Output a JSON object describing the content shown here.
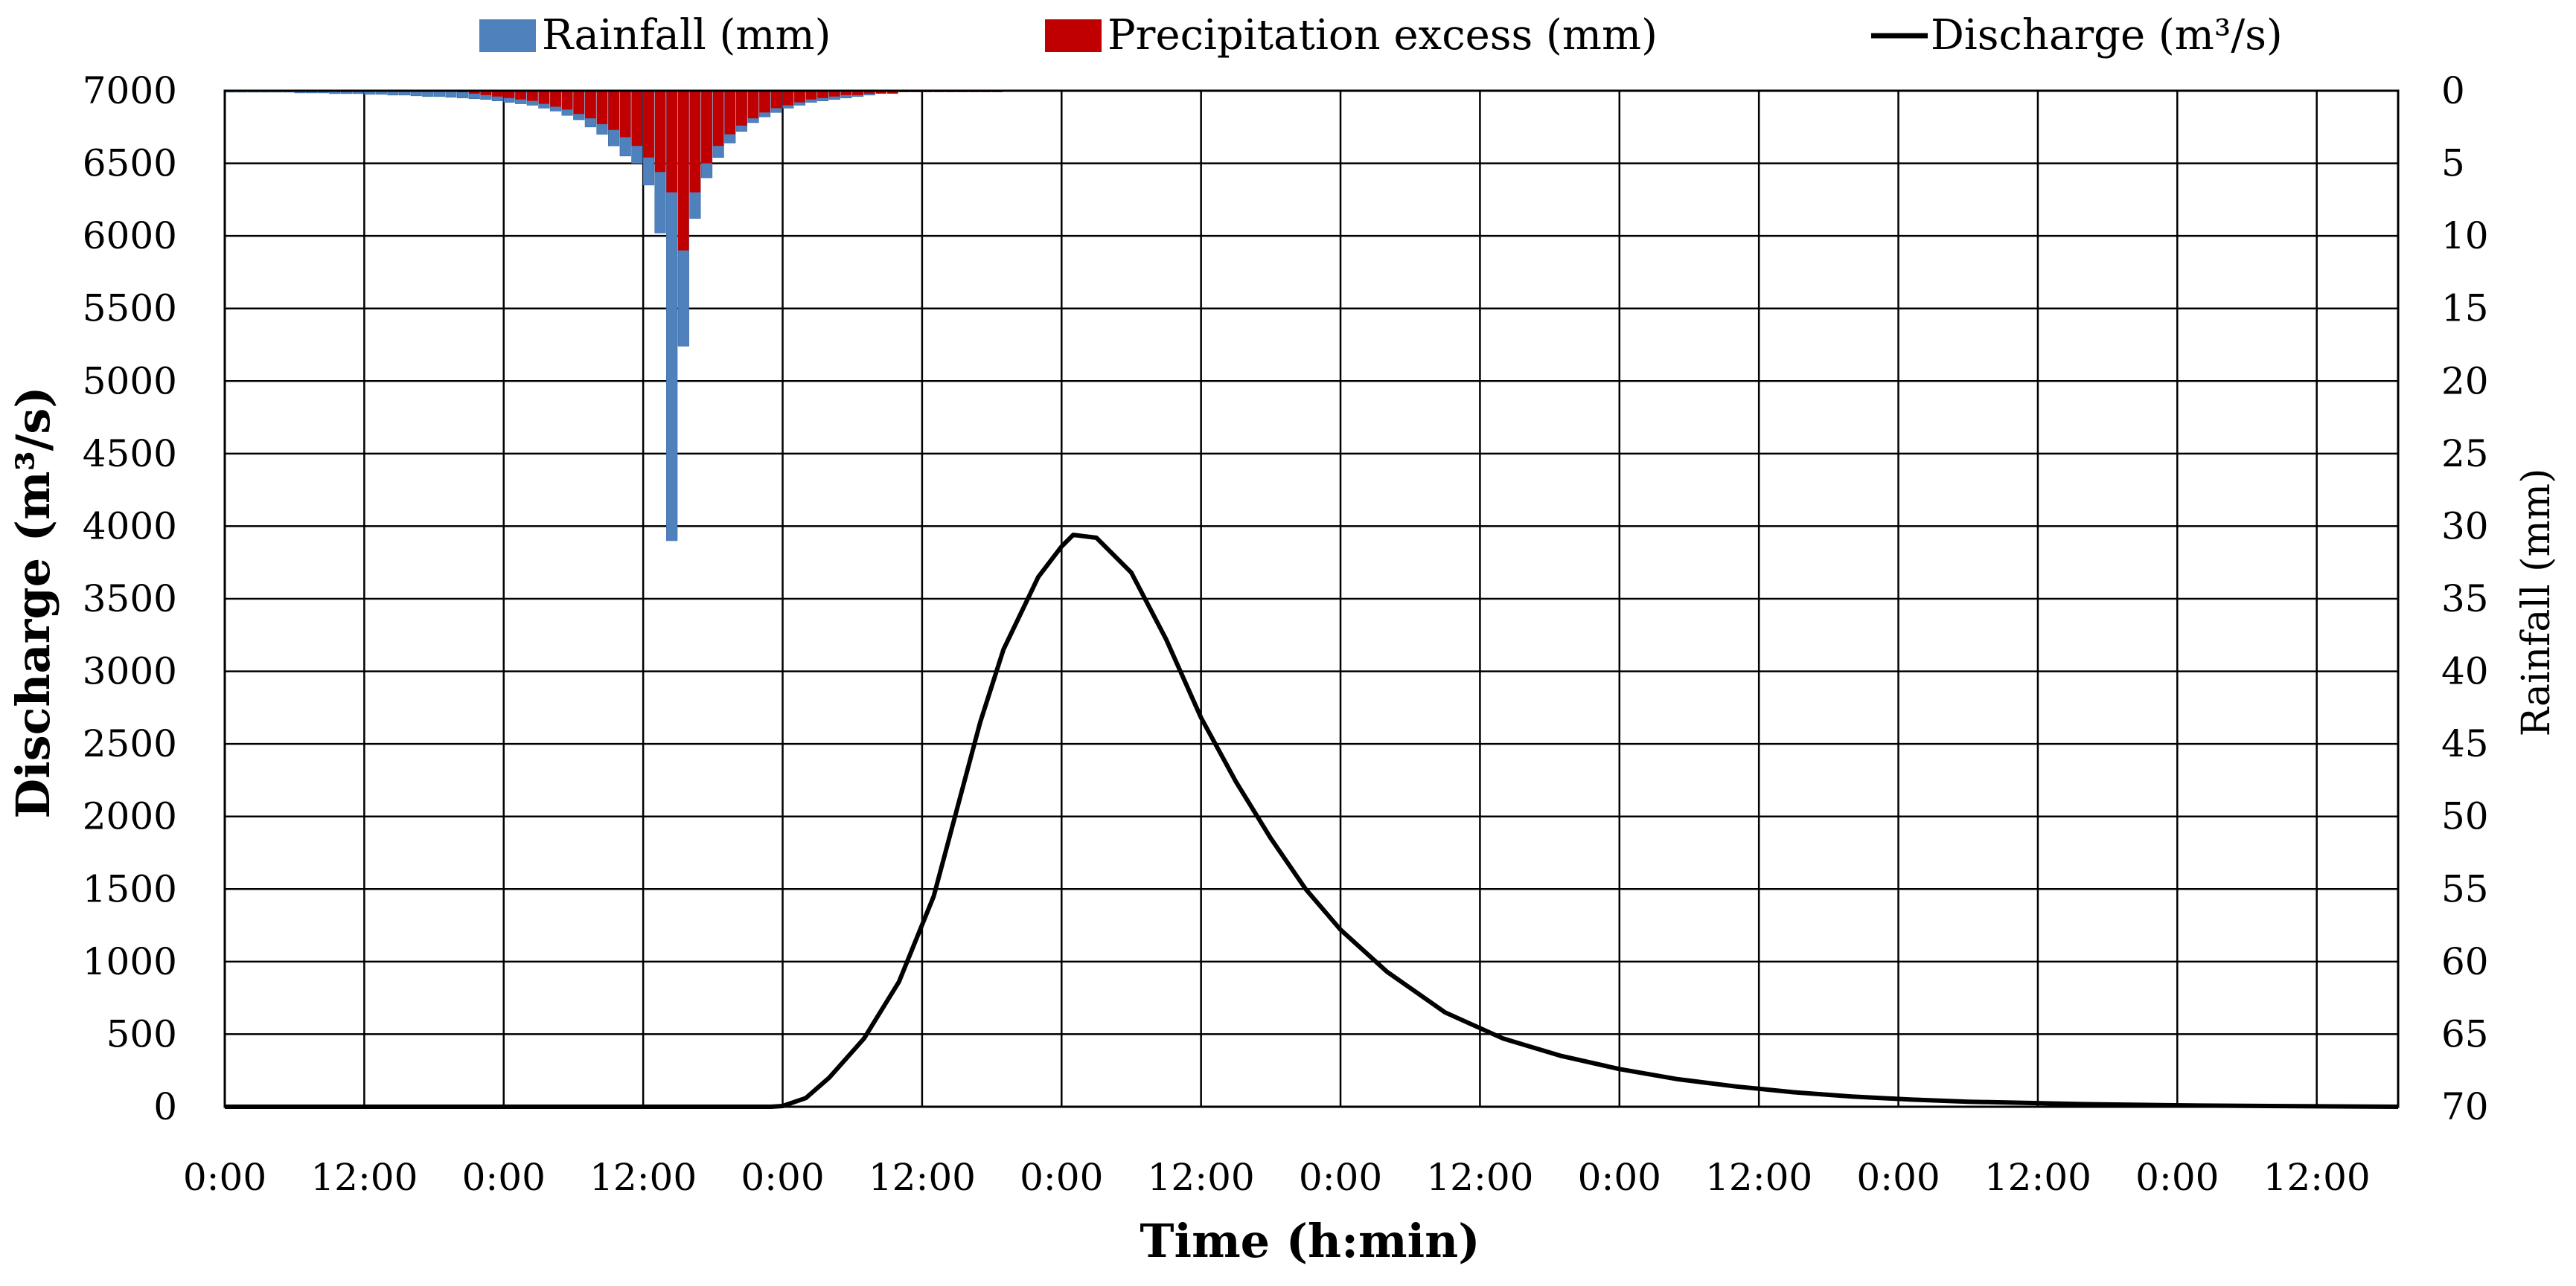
{
  "chart_data": {
    "type": "combo-bar-line",
    "x_tick_labels": [
      "0:00",
      "12:00",
      "0:00",
      "12:00",
      "0:00",
      "12:00",
      "0:00",
      "12:00",
      "0:00",
      "12:00",
      "0:00",
      "12:00",
      "0:00",
      "12:00",
      "0:00",
      "12:00"
    ],
    "xlabel": "Time (h:min)",
    "xlim_hours": [
      0,
      187
    ],
    "ylabel_left": "Discharge (m³/s)",
    "ylim_left": [
      0,
      7000
    ],
    "yticks_left": [
      0,
      500,
      1000,
      1500,
      2000,
      2500,
      3000,
      3500,
      4000,
      4500,
      5000,
      5500,
      6000,
      6500,
      7000
    ],
    "ylabel_right": "Rainfall (mm)",
    "ylim_right_inverted": [
      0,
      70
    ],
    "yticks_right": [
      0,
      5,
      10,
      15,
      20,
      25,
      30,
      35,
      40,
      45,
      50,
      55,
      60,
      65,
      70
    ],
    "grid": true,
    "legend_position": "top",
    "series": [
      {
        "name": "Rainfall (mm)",
        "kind": "bar",
        "axis": "right",
        "color": "#4f81bd",
        "time_hours": [
          0,
          1,
          2,
          3,
          4,
          5,
          6,
          7,
          8,
          9,
          10,
          11,
          12,
          13,
          14,
          15,
          16,
          17,
          18,
          19,
          20,
          21,
          22,
          23,
          24,
          25,
          26,
          27,
          28,
          29,
          30,
          31,
          32,
          33,
          34,
          35,
          36,
          37,
          38,
          39,
          40,
          41,
          42,
          43,
          44,
          45,
          46,
          47,
          48,
          49,
          50,
          51,
          52,
          53,
          54,
          55
        ],
        "values": [
          0.1,
          0.1,
          0.1,
          0.1,
          0.1,
          0.1,
          0.15,
          0.15,
          0.15,
          0.2,
          0.2,
          0.2,
          0.25,
          0.25,
          0.3,
          0.3,
          0.35,
          0.4,
          0.4,
          0.45,
          0.5,
          0.55,
          0.6,
          0.7,
          0.8,
          0.9,
          1.0,
          1.2,
          1.4,
          1.7,
          2.0,
          2.5,
          3.0,
          3.8,
          4.5,
          5.0,
          6.5,
          9.8,
          31.0,
          17.6,
          8.8,
          6.0,
          4.6,
          3.6,
          2.8,
          2.2,
          1.8,
          1.5,
          1.2,
          1.0,
          0.8,
          0.7,
          0.6,
          0.5,
          0.4,
          0.3
        ]
      },
      {
        "name": "Precipitation excess (mm)",
        "kind": "bar",
        "axis": "right",
        "color": "#c00000",
        "time_hours": [
          20,
          21,
          22,
          23,
          24,
          25,
          26,
          27,
          28,
          29,
          30,
          31,
          32,
          33,
          34,
          35,
          36,
          37,
          38,
          39,
          40,
          41,
          42,
          43,
          44,
          45,
          46,
          47,
          48,
          49,
          50,
          51,
          52,
          53,
          54,
          55,
          56,
          57,
          58,
          59,
          60,
          61,
          62,
          63,
          64,
          65,
          66
        ],
        "values": [
          0.1,
          0.2,
          0.3,
          0.4,
          0.5,
          0.6,
          0.7,
          0.9,
          1.1,
          1.3,
          1.6,
          1.9,
          2.3,
          2.7,
          3.2,
          3.8,
          4.6,
          5.6,
          7.0,
          11.0,
          7.0,
          5.0,
          3.8,
          3.0,
          2.4,
          1.9,
          1.5,
          1.2,
          1.0,
          0.8,
          0.6,
          0.5,
          0.4,
          0.3,
          0.3,
          0.2,
          0.2,
          0.2,
          0.1,
          0.1,
          0.1,
          0.1,
          0.1,
          0.1,
          0.1,
          0.1,
          0.1
        ]
      },
      {
        "name": "Discharge (m³/s)",
        "kind": "line",
        "axis": "left",
        "color": "#000000",
        "time_hours": [
          0,
          10,
          20,
          30,
          40,
          47,
          48,
          50,
          52,
          55,
          58,
          61,
          63,
          65,
          67,
          70,
          72,
          73,
          75,
          78,
          81,
          84,
          87,
          90,
          93,
          96,
          100,
          105,
          110,
          115,
          120,
          125,
          130,
          135,
          140,
          145,
          150,
          160,
          170,
          180,
          187
        ],
        "values": [
          0,
          0,
          0,
          0,
          0,
          0,
          5,
          60,
          200,
          470,
          860,
          1450,
          2050,
          2650,
          3150,
          3650,
          3860,
          3940,
          3920,
          3680,
          3220,
          2680,
          2240,
          1850,
          1500,
          1220,
          930,
          650,
          470,
          350,
          260,
          190,
          140,
          100,
          70,
          50,
          35,
          18,
          8,
          3,
          0
        ]
      }
    ]
  }
}
